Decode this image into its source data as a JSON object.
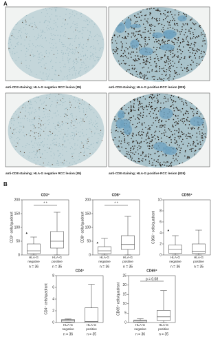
{
  "panel_a": {
    "label": "A",
    "images": [
      {
        "caption": "anti-CD3 staining; HLA-G negative RCC lesion (II5)"
      },
      {
        "caption": "anti-CD3 staining; HLA-G positive RCC lesion (839)"
      },
      {
        "caption": "anti-CD8 staining; HLA-G negative RCC lesion (II5)"
      },
      {
        "caption": "anti-CD8 staining; HLA-G positive RCC lesion (839)"
      }
    ]
  },
  "panel_b": {
    "label": "B"
  },
  "chart_data": [
    {
      "type": "box",
      "title": "CD3⁺",
      "y_label": "CD3⁺ cells/quadrant",
      "categories": [
        "HLA-G negative",
        "HLA-G positive"
      ],
      "n_labels": [
        "n = 36",
        "n = 35"
      ],
      "annotation": "* *",
      "boxes": [
        {
          "min": 0,
          "q1": 5,
          "median": 15,
          "q3": 40,
          "max": 65,
          "outliers": [
            80
          ]
        },
        {
          "min": 0,
          "q1": 25,
          "median": 50,
          "q3": 85,
          "max": 155,
          "outliers": []
        }
      ],
      "ylim": [
        0,
        200
      ],
      "yticks": [
        0,
        50,
        100,
        150,
        200
      ]
    },
    {
      "type": "box",
      "title": "CD8⁺",
      "y_label": "CD8⁺ cells/quadrant",
      "categories": [
        "HLA-G negative",
        "HLA-G positive"
      ],
      "n_labels": [
        "n = 36",
        "n = 35"
      ],
      "annotation": "* *",
      "boxes": [
        {
          "min": 0,
          "q1": 5,
          "median": 15,
          "q3": 30,
          "max": 60,
          "outliers": [
            45
          ]
        },
        {
          "min": 0,
          "q1": 20,
          "median": 38,
          "q3": 70,
          "max": 140,
          "outliers": []
        }
      ],
      "ylim": [
        0,
        200
      ],
      "yticks": [
        0,
        50,
        100,
        150,
        200
      ]
    },
    {
      "type": "box",
      "title": "CD56⁺",
      "y_label": "CD56⁺ cells/quadrant",
      "categories": [
        "HLA-G negative",
        "HLA-G positive"
      ],
      "n_labels": [
        "n = 36",
        "n = 35"
      ],
      "boxes": [
        {
          "min": 0,
          "q1": 0.3,
          "median": 1,
          "q3": 1.8,
          "max": 3.5,
          "outliers": [
            4.5
          ]
        },
        {
          "min": 0,
          "q1": 0.3,
          "median": 0.7,
          "q3": 2,
          "max": 4.5,
          "outliers": []
        }
      ],
      "ylim": [
        0,
        10
      ],
      "yticks": [
        0,
        2,
        4,
        6,
        8,
        10
      ]
    },
    {
      "type": "box",
      "title": "CD4⁺",
      "y_label": "CD4⁺ cells/quadrant",
      "categories": [
        "HLA-G negative",
        "HLA-G positive"
      ],
      "n_labels": [
        "n = 36",
        "n = 35"
      ],
      "boxes": [
        {
          "min": 0,
          "q1": 0.1,
          "median": 0.3,
          "q3": 0.5,
          "max": 0.6,
          "outliers": []
        },
        {
          "min": 0,
          "q1": 0,
          "median": 0.2,
          "q3": 2.5,
          "max": 6.5,
          "outliers": []
        }
      ],
      "ylim": [
        0,
        8
      ],
      "yticks": [
        0,
        2,
        4,
        6,
        8
      ]
    },
    {
      "type": "box",
      "title": "CD69⁺",
      "y_label": "CD69⁺ cells/quadrant",
      "categories": [
        "HLA-G negative",
        "HLA-G positive"
      ],
      "n_labels": [
        "n = 36",
        "n = 35"
      ],
      "annotation": "p = 0.08",
      "boxes": [
        {
          "min": 0,
          "q1": 0.2,
          "median": 0.8,
          "q3": 1.2,
          "max": 2,
          "outliers": []
        },
        {
          "min": 0,
          "q1": 1,
          "median": 3,
          "q3": 6.5,
          "max": 17,
          "outliers": []
        }
      ],
      "ylim": [
        0,
        25
      ],
      "yticks": [
        0,
        5,
        10,
        15,
        20,
        25
      ]
    }
  ]
}
